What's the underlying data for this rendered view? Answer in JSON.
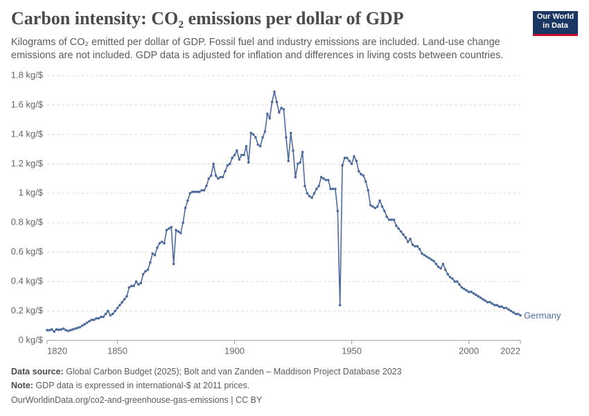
{
  "chart_data": {
    "type": "line",
    "title": "Carbon intensity: CO₂ emissions per dollar of GDP",
    "subtitle": "Kilograms of CO₂ emitted per dollar of GDP. Fossil fuel and industry emissions are included. Land-use change emissions are not included. GDP data is adjusted for inflation and differences in living costs between countries.",
    "logo": [
      "Our World",
      "in Data"
    ],
    "source_label": "Data source:",
    "source": "Global Carbon Budget (2025); Bolt and van Zanden – Maddison Project Database 2023",
    "note_label": "Note:",
    "note": "GDP data is expressed in international-$ at 2011 prices.",
    "url": "OurWorldinData.org/co2-and-greenhouse-gas-emissions | CC BY",
    "x": [
      1820,
      1821,
      1822,
      1823,
      1824,
      1825,
      1826,
      1827,
      1828,
      1829,
      1830,
      1831,
      1832,
      1833,
      1834,
      1835,
      1836,
      1837,
      1838,
      1839,
      1840,
      1841,
      1842,
      1843,
      1844,
      1845,
      1846,
      1847,
      1848,
      1849,
      1850,
      1851,
      1852,
      1853,
      1854,
      1855,
      1856,
      1857,
      1858,
      1859,
      1860,
      1861,
      1862,
      1863,
      1864,
      1865,
      1866,
      1867,
      1868,
      1869,
      1870,
      1871,
      1872,
      1873,
      1874,
      1875,
      1876,
      1877,
      1878,
      1879,
      1880,
      1881,
      1882,
      1883,
      1884,
      1885,
      1886,
      1887,
      1888,
      1889,
      1890,
      1891,
      1892,
      1893,
      1894,
      1895,
      1896,
      1897,
      1898,
      1899,
      1900,
      1901,
      1902,
      1903,
      1904,
      1905,
      1906,
      1907,
      1908,
      1909,
      1910,
      1911,
      1912,
      1913,
      1914,
      1915,
      1916,
      1917,
      1918,
      1919,
      1920,
      1921,
      1922,
      1923,
      1924,
      1925,
      1926,
      1927,
      1928,
      1929,
      1930,
      1931,
      1932,
      1933,
      1934,
      1935,
      1936,
      1937,
      1938,
      1939,
      1940,
      1941,
      1942,
      1943,
      1944,
      1945,
      1946,
      1947,
      1948,
      1949,
      1950,
      1951,
      1952,
      1953,
      1954,
      1955,
      1956,
      1957,
      1958,
      1959,
      1960,
      1961,
      1962,
      1963,
      1964,
      1965,
      1966,
      1967,
      1968,
      1969,
      1970,
      1971,
      1972,
      1973,
      1974,
      1975,
      1976,
      1977,
      1978,
      1979,
      1980,
      1981,
      1982,
      1983,
      1984,
      1985,
      1986,
      1987,
      1988,
      1989,
      1990,
      1991,
      1992,
      1993,
      1994,
      1995,
      1996,
      1997,
      1998,
      1999,
      2000,
      2001,
      2002,
      2003,
      2004,
      2005,
      2006,
      2007,
      2008,
      2009,
      2010,
      2011,
      2012,
      2013,
      2014,
      2015,
      2016,
      2017,
      2018,
      2019,
      2020,
      2021,
      2022
    ],
    "series": [
      {
        "name": "Germany",
        "color": "#4c6a9c",
        "values": [
          0.07,
          0.07,
          0.075,
          0.06,
          0.075,
          0.072,
          0.075,
          0.08,
          0.07,
          0.065,
          0.07,
          0.075,
          0.08,
          0.085,
          0.09,
          0.1,
          0.11,
          0.12,
          0.13,
          0.14,
          0.14,
          0.15,
          0.15,
          0.16,
          0.16,
          0.18,
          0.2,
          0.17,
          0.18,
          0.2,
          0.22,
          0.24,
          0.26,
          0.28,
          0.3,
          0.36,
          0.37,
          0.37,
          0.4,
          0.38,
          0.39,
          0.45,
          0.47,
          0.48,
          0.53,
          0.59,
          0.58,
          0.63,
          0.66,
          0.67,
          0.66,
          0.75,
          0.76,
          0.77,
          0.52,
          0.75,
          0.74,
          0.73,
          0.8,
          0.9,
          0.95,
          1.0,
          1.01,
          1.01,
          1.01,
          1.01,
          1.02,
          1.02,
          1.05,
          1.1,
          1.12,
          1.2,
          1.12,
          1.1,
          1.11,
          1.11,
          1.15,
          1.19,
          1.2,
          1.24,
          1.26,
          1.29,
          1.23,
          1.26,
          1.26,
          1.32,
          1.21,
          1.41,
          1.4,
          1.38,
          1.33,
          1.32,
          1.38,
          1.42,
          1.54,
          1.51,
          1.62,
          1.69,
          1.62,
          1.55,
          1.58,
          1.57,
          1.38,
          1.22,
          1.41,
          1.29,
          1.11,
          1.2,
          1.21,
          1.28,
          1.05,
          1.0,
          0.98,
          0.97,
          1.0,
          1.03,
          1.05,
          1.11,
          1.1,
          1.09,
          1.09,
          1.03,
          1.03,
          1.03,
          0.88,
          0.24,
          1.19,
          1.24,
          1.24,
          1.22,
          1.2,
          1.25,
          1.22,
          1.15,
          1.13,
          1.12,
          1.08,
          1.02,
          0.92,
          0.91,
          0.9,
          0.91,
          0.95,
          0.91,
          0.88,
          0.84,
          0.82,
          0.82,
          0.82,
          0.78,
          0.76,
          0.74,
          0.72,
          0.7,
          0.67,
          0.69,
          0.65,
          0.64,
          0.64,
          0.62,
          0.59,
          0.58,
          0.57,
          0.56,
          0.55,
          0.54,
          0.52,
          0.5,
          0.49,
          0.52,
          0.48,
          0.45,
          0.43,
          0.42,
          0.4,
          0.4,
          0.38,
          0.36,
          0.35,
          0.34,
          0.33,
          0.33,
          0.32,
          0.31,
          0.3,
          0.29,
          0.28,
          0.27,
          0.26,
          0.26,
          0.25,
          0.24,
          0.24,
          0.23,
          0.23,
          0.22,
          0.22,
          0.21,
          0.2,
          0.19,
          0.18,
          0.18,
          0.17
        ]
      }
    ],
    "xlim": [
      1820,
      2022
    ],
    "ylim": [
      0,
      1.8
    ],
    "xticks": [
      1820,
      1850,
      1900,
      1950,
      2000,
      2022
    ],
    "yticks": [
      {
        "value": 0,
        "label": "0 kg/$"
      },
      {
        "value": 0.2,
        "label": "0.2 kg/$"
      },
      {
        "value": 0.4,
        "label": "0.4 kg/$"
      },
      {
        "value": 0.6,
        "label": "0.6 kg/$"
      },
      {
        "value": 0.8,
        "label": "0.8 kg/$"
      },
      {
        "value": 1,
        "label": "1 kg/$"
      },
      {
        "value": 1.2,
        "label": "1.2 kg/$"
      },
      {
        "value": 1.4,
        "label": "1.4 kg/$"
      },
      {
        "value": 1.6,
        "label": "1.6 kg/$"
      },
      {
        "value": 1.8,
        "label": "1.8 kg/$"
      }
    ],
    "grid": true
  }
}
